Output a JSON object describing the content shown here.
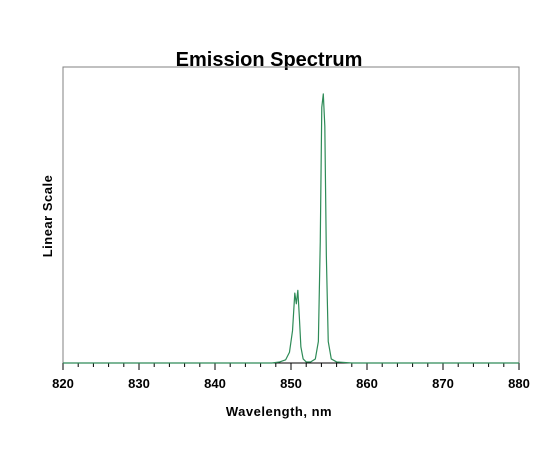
{
  "chart_data": {
    "type": "line",
    "title": "Emission Spectrum",
    "xlabel": "Wavelength, nm",
    "ylabel": "Linear Scale",
    "xlim": [
      820,
      880
    ],
    "ylim": [
      0,
      1.1
    ],
    "x_ticks": [
      820,
      830,
      840,
      850,
      860,
      870,
      880
    ],
    "x_minor_step": 2,
    "grid": false,
    "legend": "none",
    "series": [
      {
        "color": "#2e8b57",
        "x": [
          820,
          830,
          840,
          847.5,
          848.5,
          849.3,
          849.8,
          850.2,
          850.5,
          850.7,
          850.9,
          851.1,
          851.3,
          851.6,
          852.0,
          852.6,
          853.2,
          853.6,
          853.85,
          854.05,
          854.25,
          854.45,
          854.65,
          854.9,
          855.3,
          856.0,
          858.0,
          860,
          870,
          880
        ],
        "y": [
          0,
          0,
          0,
          0,
          0.004,
          0.012,
          0.04,
          0.12,
          0.26,
          0.22,
          0.27,
          0.17,
          0.06,
          0.015,
          0.004,
          0.004,
          0.015,
          0.08,
          0.45,
          0.95,
          1.0,
          0.88,
          0.4,
          0.08,
          0.015,
          0.004,
          0,
          0,
          0,
          0
        ]
      }
    ]
  }
}
